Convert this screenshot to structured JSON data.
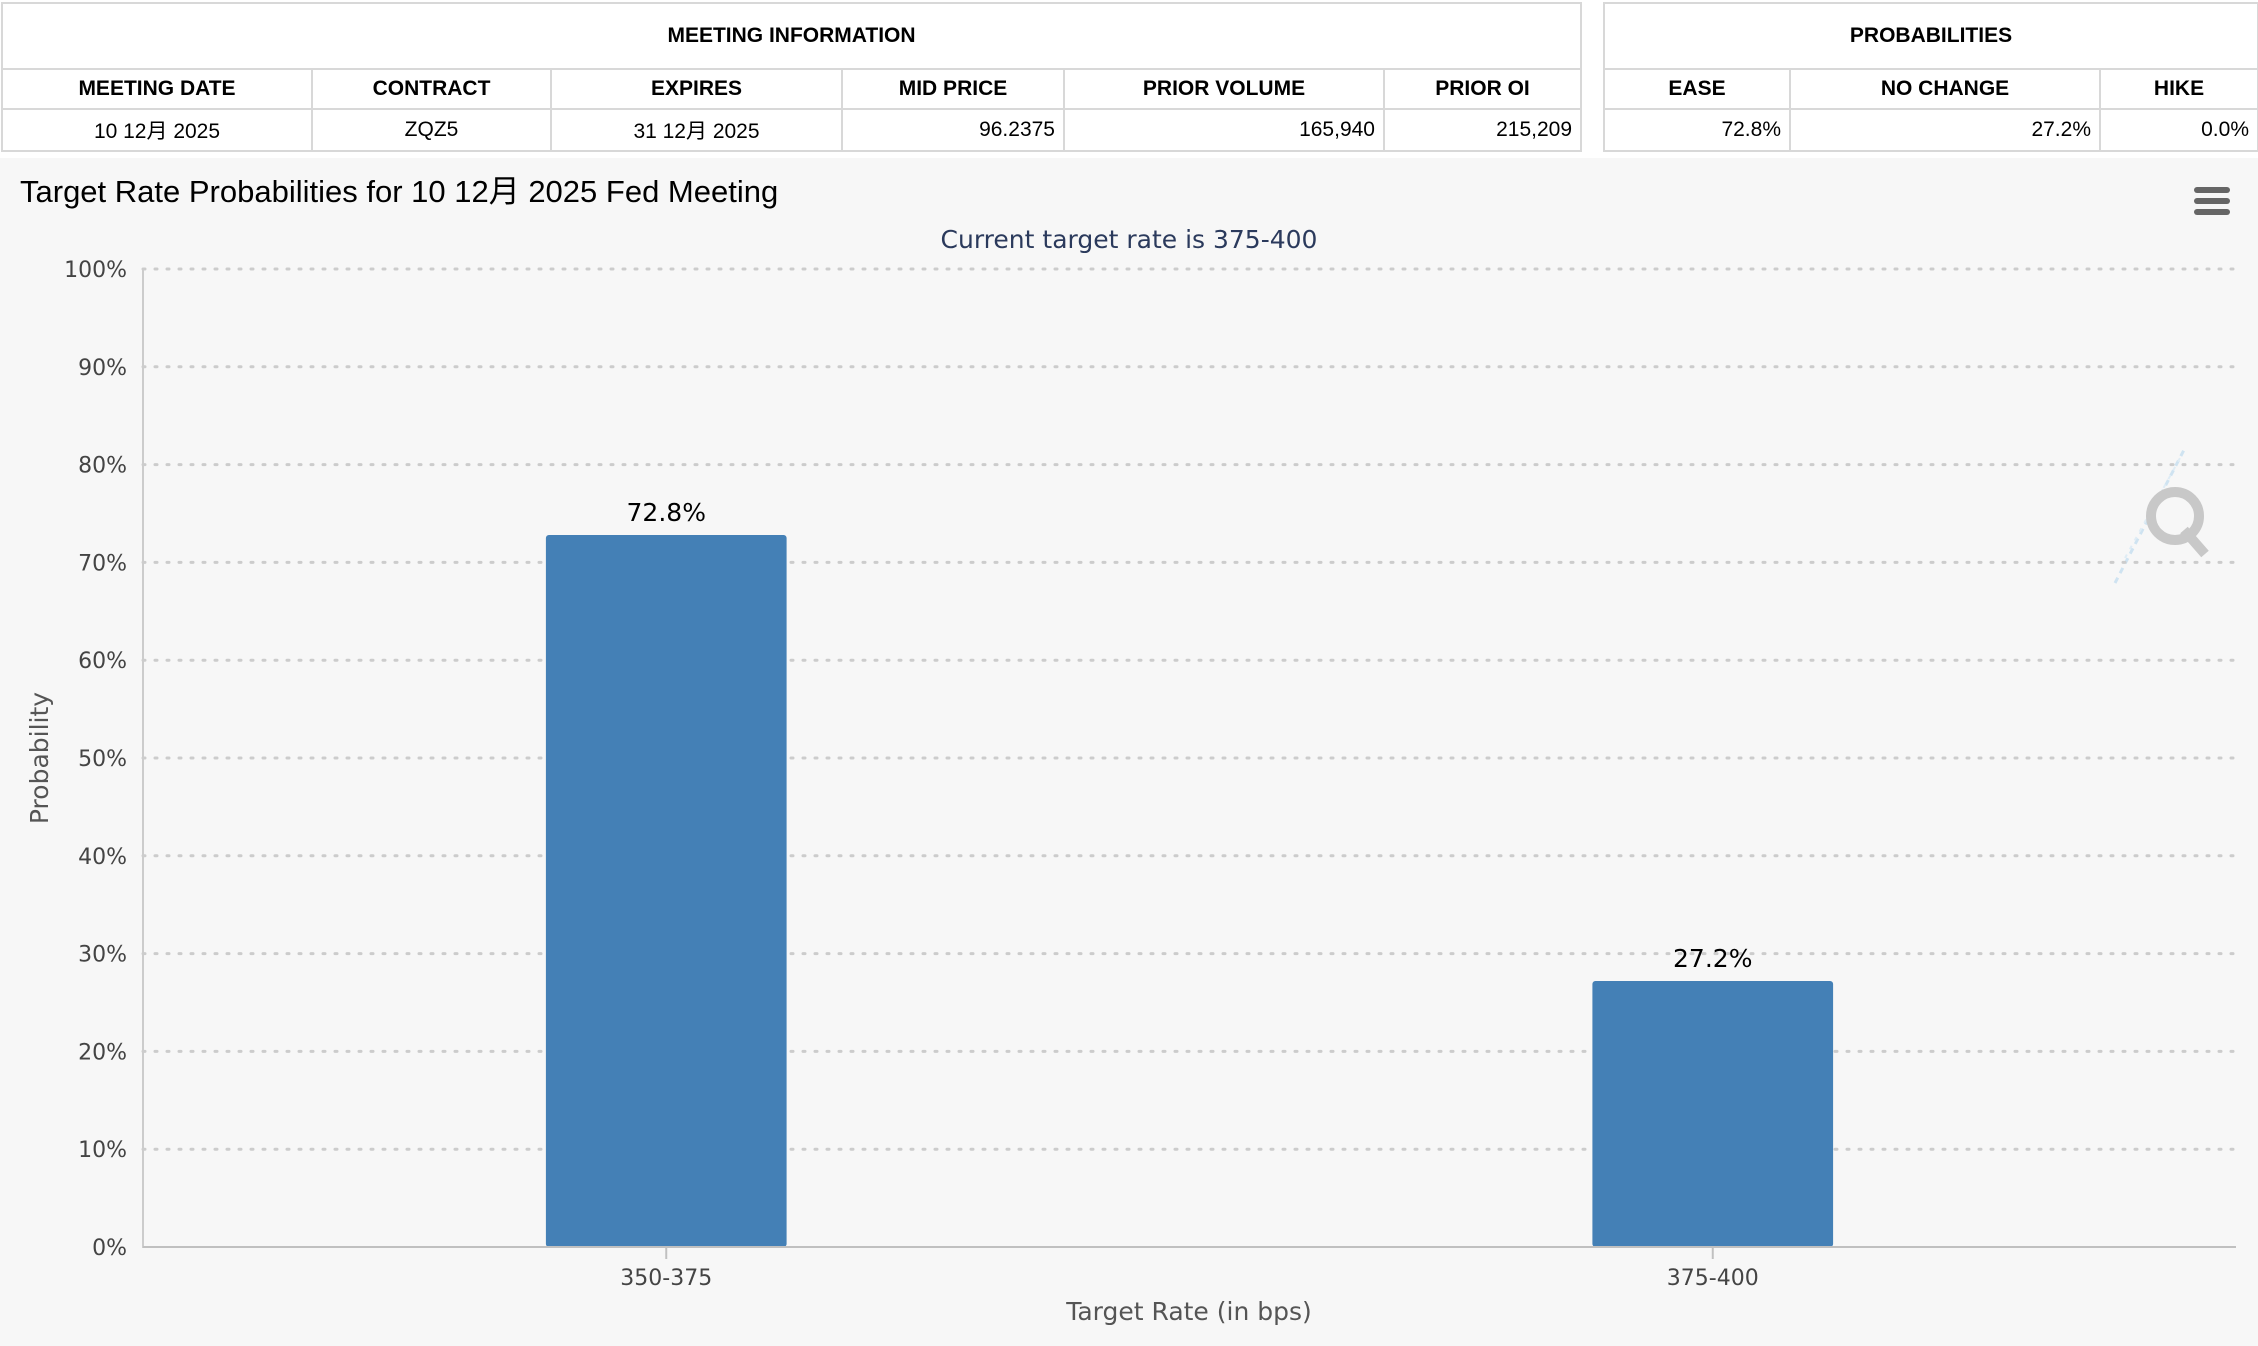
{
  "meeting_info": {
    "group_header": "MEETING INFORMATION",
    "columns": [
      "MEETING DATE",
      "CONTRACT",
      "EXPIRES",
      "MID PRICE",
      "PRIOR VOLUME",
      "PRIOR OI"
    ],
    "row": [
      "10 12月 2025",
      "ZQZ5",
      "31 12月 2025",
      "96.2375",
      "165,940",
      "215,209"
    ]
  },
  "probabilities": {
    "group_header": "PROBABILITIES",
    "columns": [
      "EASE",
      "NO CHANGE",
      "HIKE"
    ],
    "row": [
      "72.8%",
      "27.2%",
      "0.0%"
    ]
  },
  "colors": {
    "bar": "#4480b6",
    "subtitle": "#2b3a5c",
    "axis_text": "#444444",
    "grid": "#cccccc",
    "panel_bg": "#f7f7f7"
  },
  "icons": {
    "menu": "hamburger-menu-icon",
    "watermark": "q-logo-watermark-icon"
  },
  "chart_data": {
    "type": "bar",
    "title": "Target Rate Probabilities for 10 12月 2025 Fed Meeting",
    "subtitle": "Current target rate is 375-400",
    "xlabel": "Target Rate (in bps)",
    "ylabel": "Probability",
    "categories": [
      "350-375",
      "375-400"
    ],
    "values": [
      72.8,
      27.2
    ],
    "data_labels": [
      "72.8%",
      "27.2%"
    ],
    "ylim": [
      0,
      100
    ],
    "yticks": [
      "0%",
      "10%",
      "20%",
      "30%",
      "40%",
      "50%",
      "60%",
      "70%",
      "80%",
      "90%",
      "100%"
    ],
    "grid": true,
    "legend": "none"
  }
}
